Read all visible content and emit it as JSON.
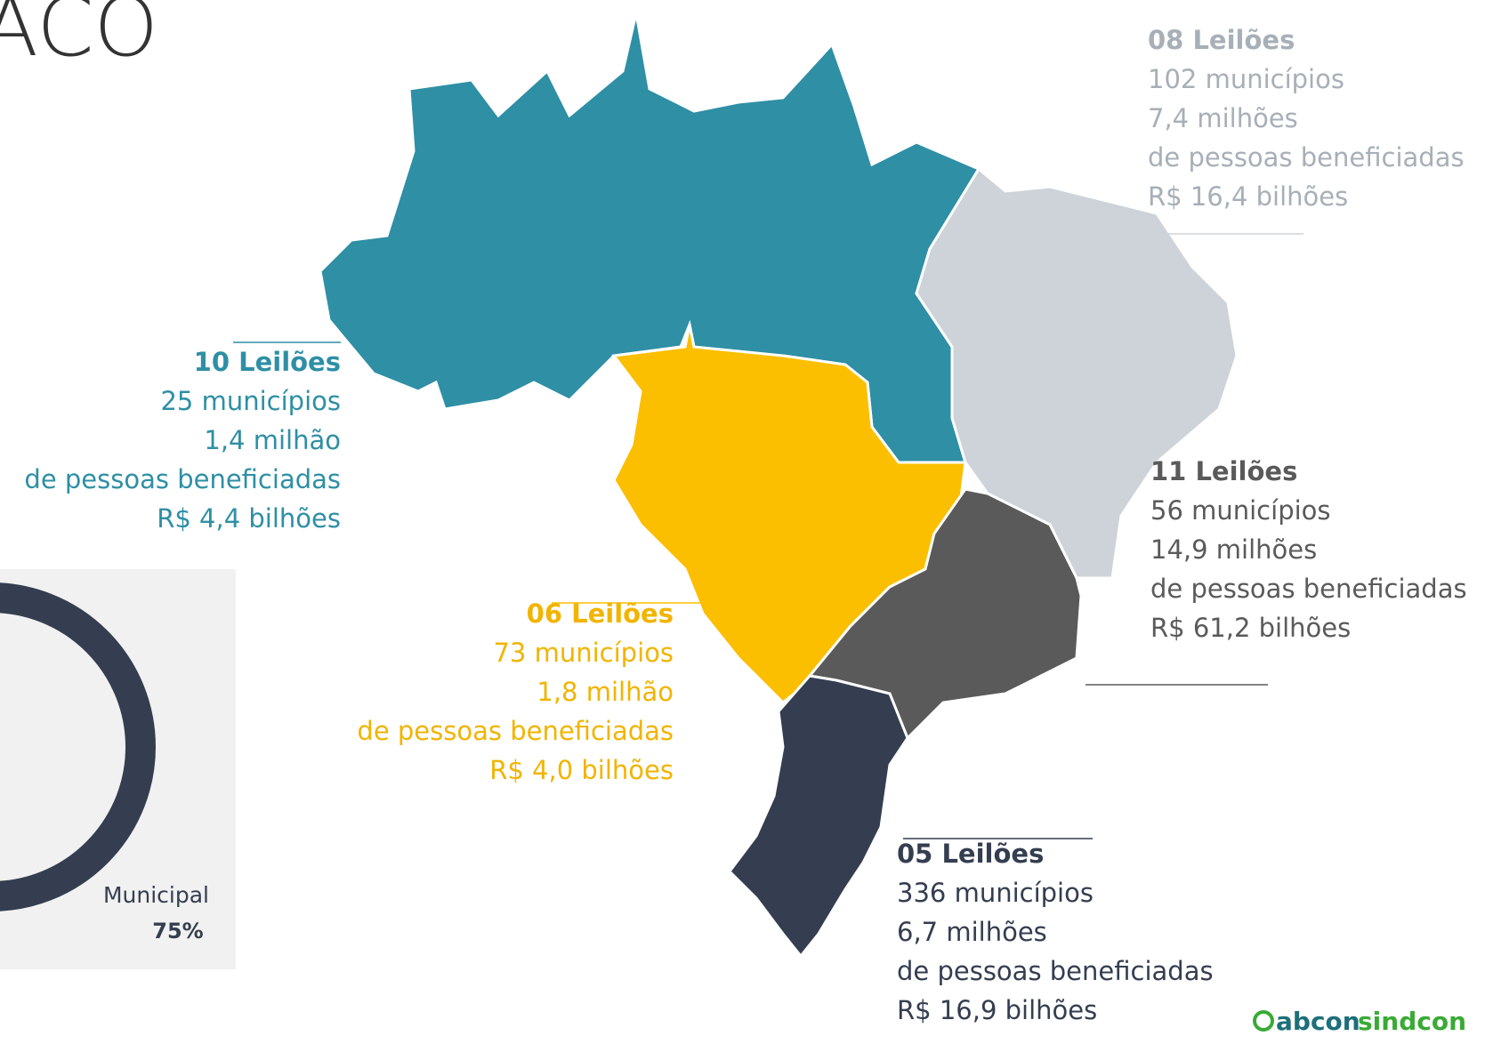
{
  "title": "ACO",
  "regions": [
    {
      "leiloes": "10 Leilões",
      "municipios": "25 municípios",
      "pessoas": "1,4 milhão",
      "beneficiadas": "de pessoas beneficiadas",
      "valor": "R$ 4,4 bilhões"
    },
    {
      "leiloes": "06 Leilões",
      "municipios": "73 municípios",
      "pessoas": "1,8 milhão",
      "beneficiadas": "de pessoas beneficiadas",
      "valor": "R$ 4,0 bilhões"
    },
    {
      "leiloes": "08 Leilões",
      "municipios": "102 municípios",
      "pessoas": "7,4 milhões",
      "beneficiadas": " de pessoas beneficiadas",
      "valor": "R$ 16,4 bilhões"
    },
    {
      "leiloes": "11 Leilões",
      "municipios": "56 municípios",
      "pessoas": "14,9 milhões",
      "beneficiadas": " de pessoas beneficiadas",
      "valor": "R$ 61,2 bilhões"
    },
    {
      "leiloes": "05 Leilões",
      "municipios": "336 municípios",
      "pessoas": "6,7 milhões",
      "beneficiadas": " de pessoas beneficiadas",
      "valor": "R$ 16,9 bilhões"
    }
  ],
  "donut": {
    "label": "Municipal",
    "value": 75,
    "value_label": "75%"
  },
  "logo": {
    "abcon": "abcon",
    "sindcon": "sindcon"
  }
}
